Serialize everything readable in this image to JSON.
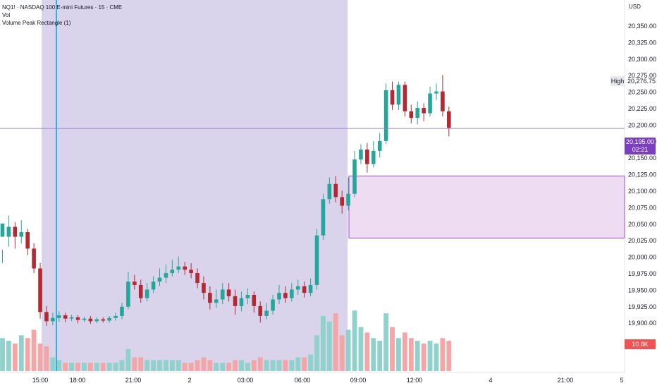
{
  "header": {
    "symbol_line": "NQ1! · NASDAQ 100 E-mini Futures · 15 · CME",
    "vol_label": "Vol",
    "indicator_label": "Volume Peak Rectangle (1)"
  },
  "axis": {
    "currency": "USD",
    "price_ticks": [
      "20,350.00",
      "20,325.00",
      "20,300.00",
      "20,275.00",
      "20,250.00",
      "20,225.00",
      "20,200.00",
      "20,175.00",
      "20,150.00",
      "20,125.00",
      "20,100.00",
      "20,075.00",
      "20,050.00",
      "20,025.00",
      "20,000.00",
      "19,975.00",
      "19,950.00",
      "19,925.00",
      "19,900.00"
    ],
    "time_ticks": [
      "15:00",
      "18:00",
      "21:00",
      "2",
      "03:00",
      "06:00",
      "09:00",
      "12:00",
      "4",
      "21:00",
      "5"
    ]
  },
  "markers": {
    "high_label": "High",
    "high_value": "20,276.75",
    "last_price": "20,195.00",
    "countdown": "02:21",
    "volume_value": "10.8K"
  },
  "colors": {
    "up": "#26a69a",
    "down": "#b22833",
    "vol_up": "#8fd1cb",
    "vol_down": "#f4a6a6",
    "session_shade": "#d9d4ec",
    "rect_fill": "#eddcf2",
    "rect_border": "#9c4fc0",
    "blue_line": "#2fb0e0"
  },
  "chart_data": {
    "type": "candlestick",
    "symbol": "NQ1!",
    "interval": "15",
    "y_range": [
      19890,
      20368
    ],
    "price_line": 20195,
    "volume_peak_rectangle": {
      "top": 20123,
      "bottom": 20029
    },
    "candles": [
      [
        20031,
        20051,
        20011,
        19991,
        1.2
      ],
      [
        20031,
        20046,
        20063,
        20016,
        1.1
      ],
      [
        20046,
        20031,
        20053,
        20013,
        1.0
      ],
      [
        20031,
        20038,
        20056,
        20021,
        1.3
      ],
      [
        20038,
        20013,
        20043,
        20003,
        1.2
      ],
      [
        20013,
        19983,
        20021,
        19976,
        1.5
      ],
      [
        19983,
        19917,
        19991,
        19907,
        1.0
      ],
      [
        19917,
        19903,
        19926,
        19896,
        0.9
      ],
      [
        19903,
        19908,
        19916,
        19897,
        0.5
      ],
      [
        19908,
        19912,
        19918,
        19902,
        0.4
      ],
      [
        19912,
        19907,
        19916,
        19902,
        0.3
      ],
      [
        19907,
        19909,
        19913,
        19903,
        0.3
      ],
      [
        19909,
        19905,
        19912,
        19900,
        0.3
      ],
      [
        19905,
        19907,
        19910,
        19902,
        0.3
      ],
      [
        19907,
        19903,
        19911,
        19899,
        0.3
      ],
      [
        19903,
        19906,
        19909,
        19900,
        0.3
      ],
      [
        19906,
        19904,
        19909,
        19901,
        0.3
      ],
      [
        19904,
        19908,
        19911,
        19901,
        0.3
      ],
      [
        19908,
        19911,
        19916,
        19904,
        0.3
      ],
      [
        19911,
        19925,
        19931,
        19906,
        0.4
      ],
      [
        19925,
        19963,
        19978,
        19921,
        0.8
      ],
      [
        19963,
        19958,
        19973,
        19951,
        0.5
      ],
      [
        19958,
        19938,
        19966,
        19931,
        0.5
      ],
      [
        19938,
        19951,
        19961,
        19933,
        0.4
      ],
      [
        19951,
        19963,
        19971,
        19946,
        0.4
      ],
      [
        19963,
        19969,
        19983,
        19956,
        0.4
      ],
      [
        19969,
        19976,
        19989,
        19961,
        0.4
      ],
      [
        19976,
        19981,
        19996,
        19971,
        0.4
      ],
      [
        19981,
        19986,
        20001,
        19976,
        0.4
      ],
      [
        19986,
        19981,
        19993,
        19973,
        0.3
      ],
      [
        19981,
        19976,
        19991,
        19968,
        0.3
      ],
      [
        19976,
        19961,
        19983,
        19953,
        0.4
      ],
      [
        19961,
        19946,
        19971,
        19936,
        0.5
      ],
      [
        19946,
        19931,
        19956,
        19921,
        0.4
      ],
      [
        19931,
        19936,
        19951,
        19923,
        0.3
      ],
      [
        19936,
        19951,
        19961,
        19929,
        0.3
      ],
      [
        19951,
        19941,
        19961,
        19933,
        0.3
      ],
      [
        19941,
        19926,
        19951,
        19913,
        0.4
      ],
      [
        19926,
        19938,
        19948,
        19918,
        0.4
      ],
      [
        19938,
        19943,
        19953,
        19929,
        0.3
      ],
      [
        19943,
        19926,
        19948,
        19916,
        0.4
      ],
      [
        19926,
        19911,
        19933,
        19901,
        0.5
      ],
      [
        19911,
        19919,
        19931,
        19906,
        0.4
      ],
      [
        19919,
        19936,
        19943,
        19913,
        0.4
      ],
      [
        19936,
        19946,
        19958,
        19929,
        0.4
      ],
      [
        19946,
        19938,
        19956,
        19931,
        0.4
      ],
      [
        19938,
        19951,
        19961,
        19933,
        0.4
      ],
      [
        19951,
        19956,
        19966,
        19943,
        0.5
      ],
      [
        19956,
        19946,
        19963,
        19939,
        0.5
      ],
      [
        19946,
        19958,
        19968,
        19941,
        0.6
      ],
      [
        19958,
        20033,
        20043,
        19951,
        1.3
      ],
      [
        20033,
        20088,
        20096,
        20026,
        2.0
      ],
      [
        20088,
        20111,
        20121,
        20081,
        1.8
      ],
      [
        20111,
        20091,
        20123,
        20083,
        2.1
      ],
      [
        20091,
        20078,
        20101,
        20066,
        1.3
      ],
      [
        20078,
        20096,
        20121,
        20071,
        1.5
      ],
      [
        20096,
        20148,
        20161,
        20091,
        2.2
      ],
      [
        20148,
        20163,
        20171,
        20141,
        1.6
      ],
      [
        20163,
        20141,
        20173,
        20128,
        1.4
      ],
      [
        20141,
        20161,
        20176,
        20136,
        1.2
      ],
      [
        20161,
        20176,
        20188,
        20151,
        1.1
      ],
      [
        20176,
        20253,
        20263,
        20171,
        2.1
      ],
      [
        20253,
        20231,
        20266,
        20223,
        1.6
      ],
      [
        20231,
        20261,
        20266,
        20223,
        1.2
      ],
      [
        20261,
        20221,
        20266,
        20213,
        1.4
      ],
      [
        20221,
        20211,
        20231,
        20203,
        1.2
      ],
      [
        20211,
        20226,
        20236,
        20201,
        1.1
      ],
      [
        20226,
        20218,
        20233,
        20206,
        1.0
      ],
      [
        20218,
        20248,
        20258,
        20213,
        1.1
      ],
      [
        20248,
        20251,
        20263,
        20238,
        1.0
      ],
      [
        20251,
        20221,
        20276,
        20213,
        1.2
      ],
      [
        20221,
        20196,
        20228,
        20183,
        1.1
      ]
    ]
  }
}
